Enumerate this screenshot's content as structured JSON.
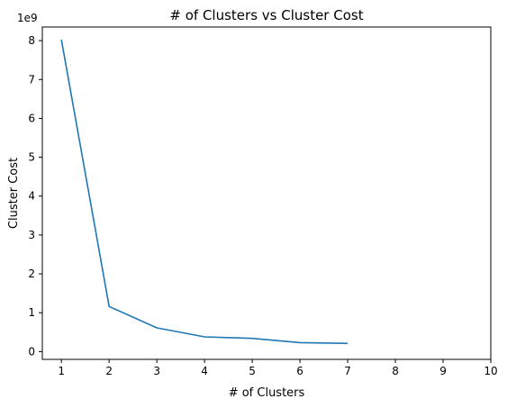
{
  "chart_data": {
    "type": "line",
    "title": "# of Clusters vs Cluster Cost",
    "xlabel": "# of Clusters",
    "ylabel": "Cluster Cost",
    "y_offset_label": "1e9",
    "xlim": [
      0.6,
      10
    ],
    "ylim": [
      -0.2,
      8.35
    ],
    "xticks": [
      1,
      2,
      3,
      4,
      5,
      6,
      7,
      8,
      9,
      10
    ],
    "yticks": [
      0,
      1,
      2,
      3,
      4,
      5,
      6,
      7,
      8
    ],
    "grid": false,
    "series": [
      {
        "x": [
          1,
          2,
          3,
          4,
          5,
          6,
          7
        ],
        "y": [
          8.02,
          1.16,
          0.61,
          0.38,
          0.34,
          0.23,
          0.21
        ],
        "color": "#1f77b4"
      }
    ]
  }
}
